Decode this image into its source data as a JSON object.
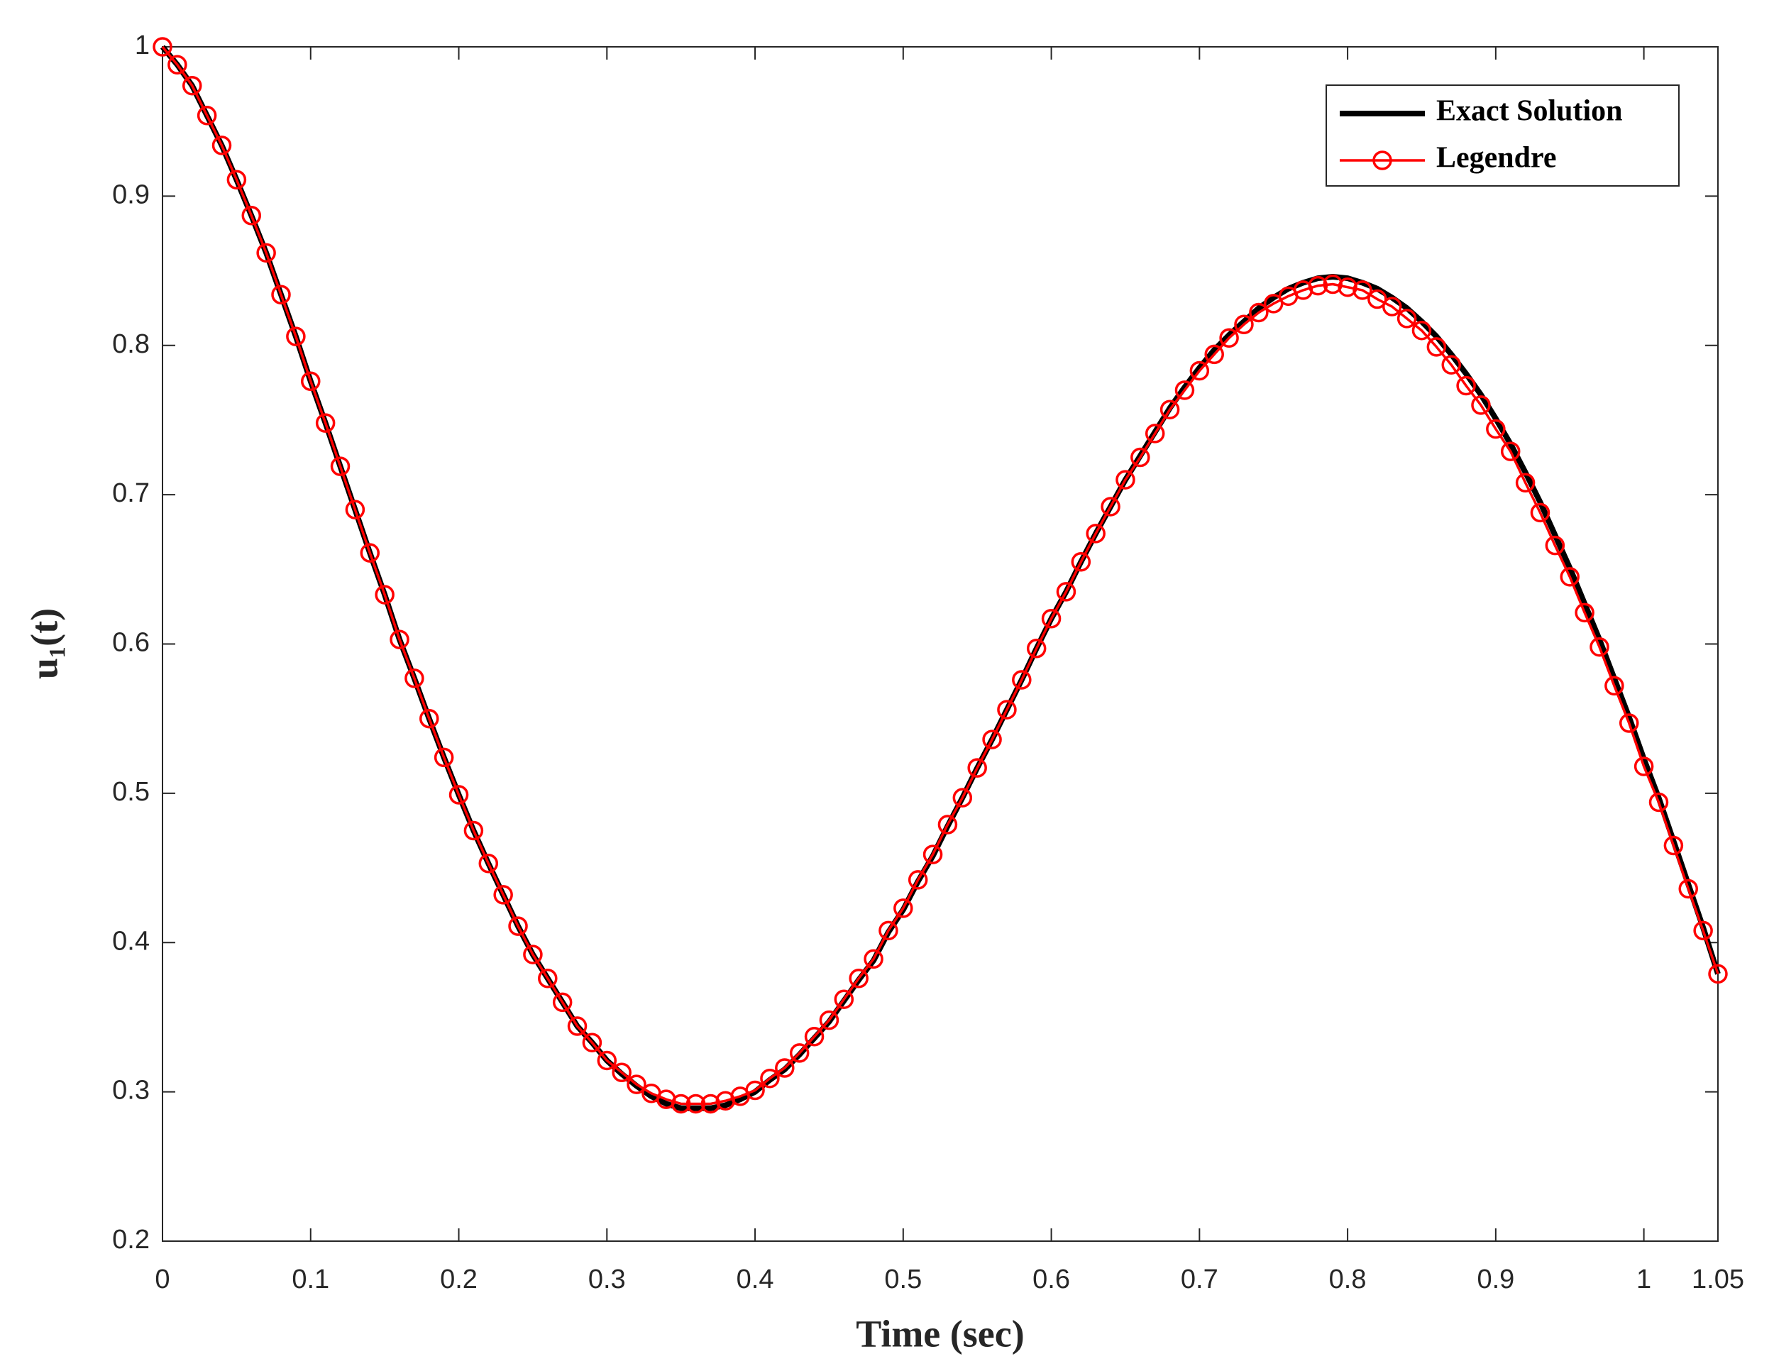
{
  "chart_data": {
    "type": "line",
    "xlabel": "Time (sec)",
    "ylabel": "u₁(t)",
    "x": [
      0,
      0.01,
      0.02,
      0.03,
      0.04,
      0.05,
      0.06,
      0.07,
      0.08,
      0.09,
      0.1,
      0.11,
      0.12,
      0.13,
      0.14,
      0.15,
      0.16,
      0.17,
      0.18,
      0.19,
      0.2,
      0.21,
      0.22,
      0.23,
      0.24,
      0.25,
      0.26,
      0.27,
      0.28,
      0.29,
      0.3,
      0.31,
      0.32,
      0.33,
      0.34,
      0.35,
      0.36,
      0.37,
      0.38,
      0.39,
      0.4,
      0.41,
      0.42,
      0.43,
      0.44,
      0.45,
      0.46,
      0.47,
      0.48,
      0.49,
      0.5,
      0.51,
      0.52,
      0.53,
      0.54,
      0.55,
      0.56,
      0.57,
      0.58,
      0.59,
      0.6,
      0.61,
      0.62,
      0.63,
      0.64,
      0.65,
      0.66,
      0.67,
      0.68,
      0.69,
      0.7,
      0.71,
      0.72,
      0.73,
      0.74,
      0.75,
      0.76,
      0.77,
      0.78,
      0.79,
      0.8,
      0.81,
      0.82,
      0.83,
      0.84,
      0.85,
      0.86,
      0.87,
      0.88,
      0.89,
      0.9,
      0.91,
      0.92,
      0.93,
      0.94,
      0.95,
      0.96,
      0.97,
      0.98,
      0.99,
      1,
      1.01,
      1.02,
      1.03,
      1.04,
      1.05
    ],
    "series": [
      {
        "name": "Exact Solution",
        "color": "#000000",
        "marker": "none",
        "values": [
          1,
          0.988,
          0.974,
          0.954,
          0.934,
          0.911,
          0.887,
          0.862,
          0.834,
          0.806,
          0.776,
          0.748,
          0.719,
          0.69,
          0.661,
          0.633,
          0.603,
          0.577,
          0.55,
          0.524,
          0.499,
          0.475,
          0.453,
          0.432,
          0.411,
          0.392,
          0.376,
          0.36,
          0.344,
          0.333,
          0.321,
          0.312,
          0.304,
          0.297,
          0.292,
          0.289,
          0.289,
          0.289,
          0.291,
          0.295,
          0.3,
          0.308,
          0.315,
          0.325,
          0.336,
          0.347,
          0.361,
          0.375,
          0.388,
          0.407,
          0.422,
          0.441,
          0.458,
          0.478,
          0.497,
          0.517,
          0.536,
          0.556,
          0.576,
          0.597,
          0.617,
          0.635,
          0.655,
          0.674,
          0.692,
          0.71,
          0.726,
          0.742,
          0.758,
          0.772,
          0.785,
          0.797,
          0.807,
          0.816,
          0.825,
          0.832,
          0.838,
          0.842,
          0.845,
          0.846,
          0.845,
          0.842,
          0.838,
          0.832,
          0.825,
          0.816,
          0.806,
          0.794,
          0.781,
          0.767,
          0.751,
          0.734,
          0.715,
          0.695,
          0.673,
          0.651,
          0.627,
          0.603,
          0.577,
          0.551,
          0.523,
          0.497,
          0.468,
          0.439,
          0.41,
          0.379
        ]
      },
      {
        "name": "Legendre",
        "color": "#ff0000",
        "marker": "circle",
        "values": [
          1,
          0.988,
          0.974,
          0.954,
          0.934,
          0.911,
          0.887,
          0.862,
          0.834,
          0.806,
          0.776,
          0.748,
          0.719,
          0.69,
          0.661,
          0.633,
          0.603,
          0.577,
          0.55,
          0.524,
          0.499,
          0.475,
          0.453,
          0.432,
          0.411,
          0.392,
          0.376,
          0.36,
          0.344,
          0.333,
          0.321,
          0.313,
          0.305,
          0.299,
          0.295,
          0.292,
          0.292,
          0.292,
          0.294,
          0.297,
          0.301,
          0.309,
          0.316,
          0.326,
          0.337,
          0.348,
          0.362,
          0.376,
          0.389,
          0.408,
          0.423,
          0.442,
          0.459,
          0.479,
          0.497,
          0.517,
          0.536,
          0.556,
          0.576,
          0.597,
          0.617,
          0.635,
          0.655,
          0.674,
          0.692,
          0.71,
          0.725,
          0.741,
          0.757,
          0.77,
          0.783,
          0.794,
          0.805,
          0.814,
          0.822,
          0.828,
          0.833,
          0.837,
          0.84,
          0.841,
          0.839,
          0.837,
          0.831,
          0.826,
          0.818,
          0.81,
          0.799,
          0.787,
          0.773,
          0.76,
          0.744,
          0.729,
          0.708,
          0.688,
          0.666,
          0.645,
          0.621,
          0.598,
          0.572,
          0.547,
          0.518,
          0.494,
          0.465,
          0.436,
          0.408,
          0.379
        ]
      }
    ],
    "xlim": [
      0,
      1.05
    ],
    "ylim": [
      0.2,
      1
    ],
    "xticks": [
      0,
      0.1,
      0.2,
      0.3,
      0.4,
      0.5,
      0.6,
      0.7,
      0.8,
      0.9,
      1,
      1.05
    ],
    "yticks": [
      0.2,
      0.3,
      0.4,
      0.5,
      0.6,
      0.7,
      0.8,
      0.9,
      1
    ],
    "grid": false,
    "legend": "top-right"
  }
}
